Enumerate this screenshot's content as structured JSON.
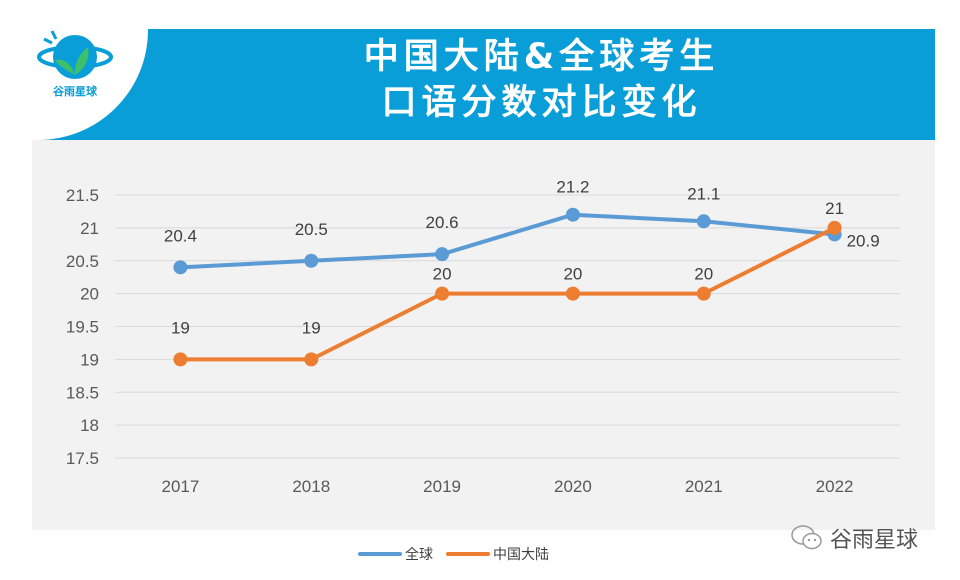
{
  "header": {
    "title_line1": "中国大陆&全球考生",
    "title_line2": "口语分数对比变化"
  },
  "logo": {
    "text": "谷雨星球"
  },
  "watermark": {
    "text": "谷雨星球",
    "icon": "wechat-icon"
  },
  "colors": {
    "header": "#0a9ed9",
    "global": "#5b9bd5",
    "mainland": "#ed7d31",
    "panel": "#f2f2f2"
  },
  "chart_data": {
    "type": "line",
    "categories": [
      "2017",
      "2018",
      "2019",
      "2020",
      "2021",
      "2022"
    ],
    "series": [
      {
        "name": "全球",
        "values": [
          20.4,
          20.5,
          20.6,
          21.2,
          21.1,
          20.9
        ],
        "color": "#5b9bd5"
      },
      {
        "name": "中国大陆",
        "values": [
          19,
          19,
          20,
          20,
          20,
          21
        ],
        "color": "#ed7d31"
      }
    ],
    "ylim": [
      17.5,
      21.5
    ],
    "yticks": [
      "17.5",
      "18",
      "18.5",
      "19",
      "19.5",
      "20",
      "20.5",
      "21",
      "21.5"
    ],
    "grid": true,
    "legend": "bottom"
  }
}
